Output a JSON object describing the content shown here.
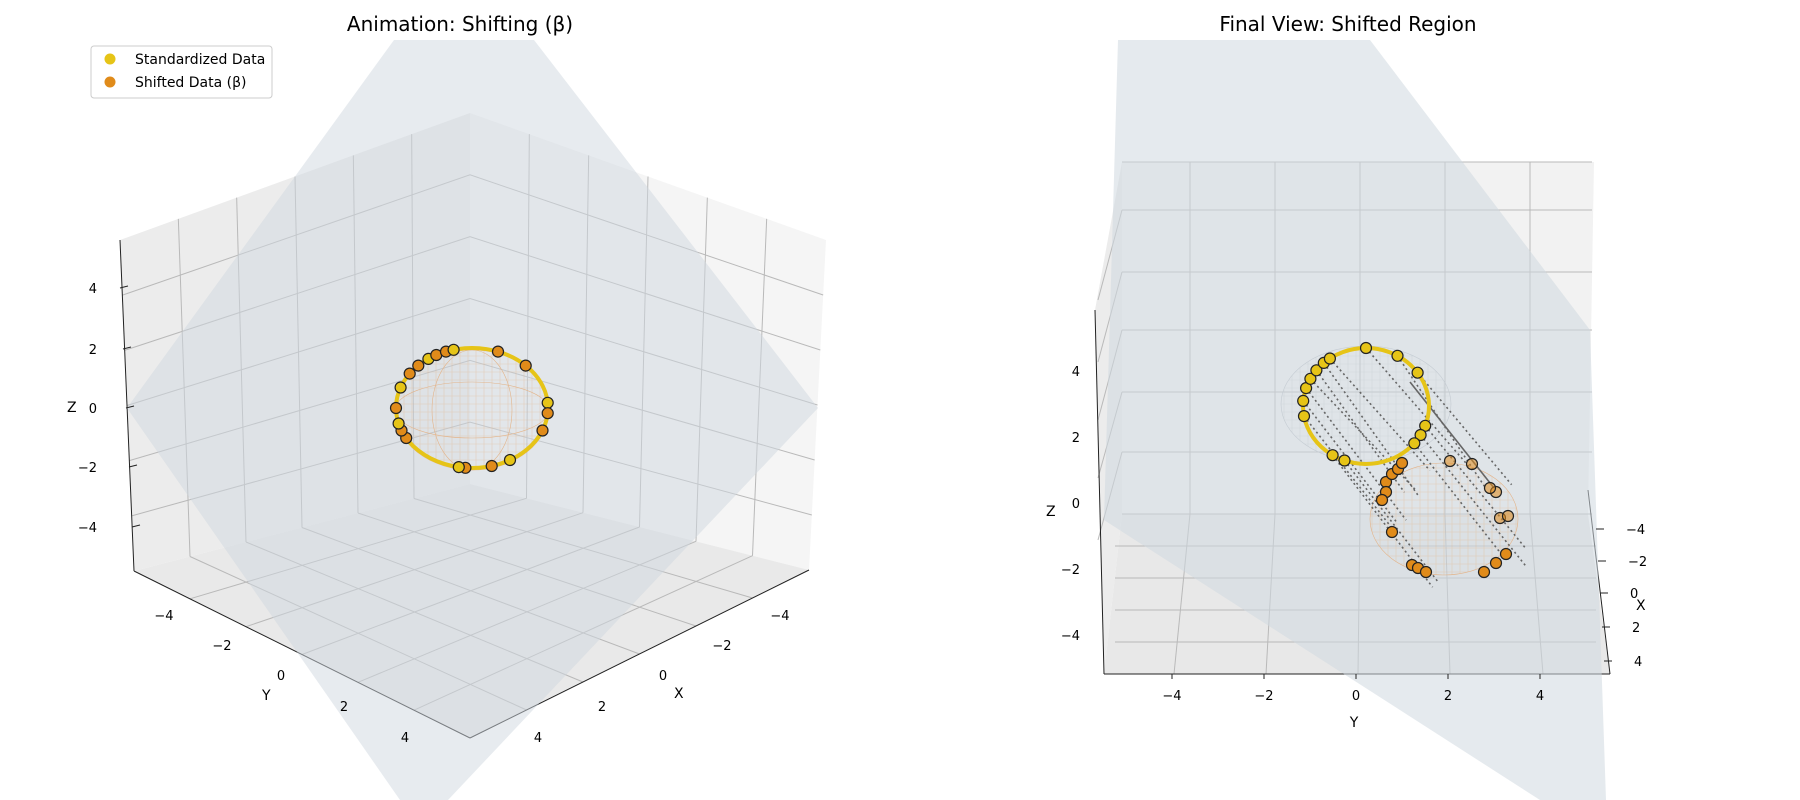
{
  "legend": {
    "items": [
      {
        "label": "Standardized Data",
        "color": "#e6c417"
      },
      {
        "label": "Shifted Data (β)",
        "color": "#e08b1a"
      }
    ]
  },
  "colors": {
    "standardized": "#e6c417",
    "shifted": "#e08b1a",
    "ring": "#e6c417",
    "plane": "#cfd8e0",
    "pane": "#f2f2f2"
  },
  "chart_data": [
    {
      "type": "scatter",
      "title": "Animation: Shifting (β)",
      "xlabel": "X",
      "ylabel": "Y",
      "zlabel": "Z",
      "xlim": [
        -5,
        5
      ],
      "ylim": [
        -5,
        5
      ],
      "zlim": [
        -5,
        5
      ],
      "xticks": [
        "−4",
        "−2",
        "0",
        "2",
        "4"
      ],
      "yticks": [
        "−4",
        "−2",
        "0",
        "2",
        "4"
      ],
      "zticks": [
        "4",
        "2",
        "0",
        "−2",
        "−4"
      ],
      "grid": true,
      "legend": "top-left",
      "series": [
        {
          "name": "Standardized Data",
          "marker": "circle"
        },
        {
          "name": "Shifted Data (β)",
          "marker": "circle"
        }
      ]
    },
    {
      "type": "scatter",
      "title": "Final View: Shifted Region",
      "xlabel": "X",
      "ylabel": "Y",
      "zlabel": "Z",
      "xlim": [
        -5,
        5
      ],
      "ylim": [
        -5,
        5
      ],
      "zlim": [
        -5,
        5
      ],
      "xticks": [
        "−4",
        "−2",
        "0",
        "2",
        "4"
      ],
      "yticks": [
        "−4",
        "−2",
        "0",
        "2",
        "4"
      ],
      "zticks": [
        "4",
        "2",
        "0",
        "−2",
        "−4"
      ],
      "grid": true,
      "series": [
        {
          "name": "Standardized Data",
          "marker": "circle"
        },
        {
          "name": "Shifted Data (β)",
          "marker": "circle"
        }
      ]
    }
  ]
}
